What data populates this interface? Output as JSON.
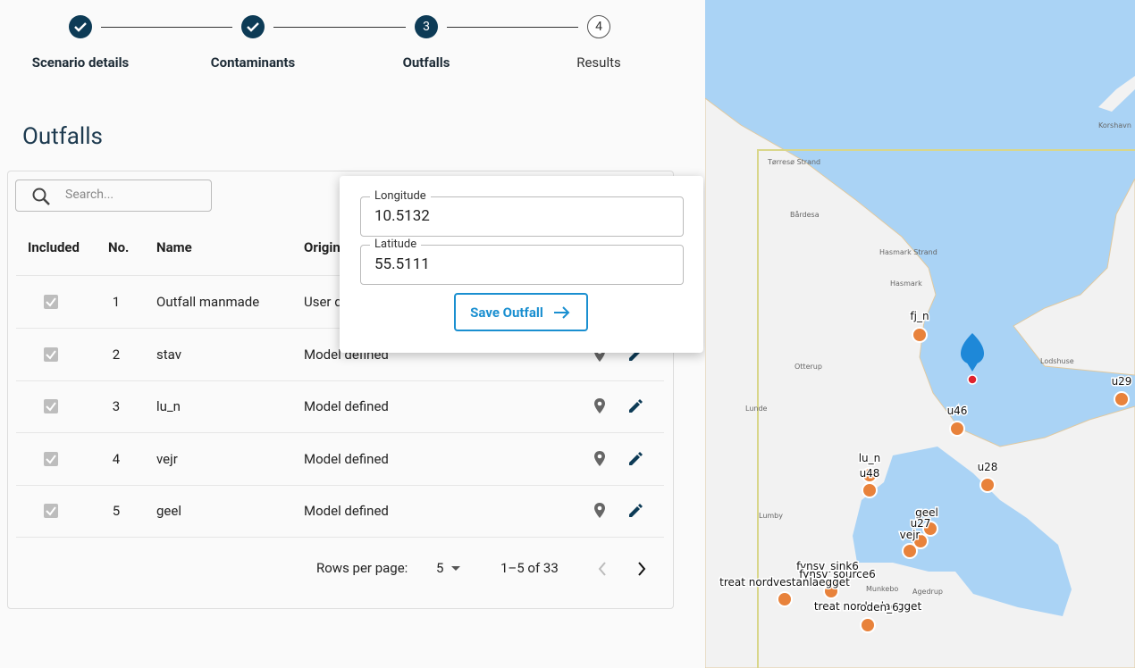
{
  "steps": [
    {
      "label": "Scenario details",
      "done": true
    },
    {
      "label": "Contaminants",
      "done": true
    },
    {
      "label": "Outfalls",
      "number": "3",
      "active": true
    },
    {
      "label": "Results",
      "number": "4"
    }
  ],
  "heading": "Outfalls",
  "search_placeholder": "Search...",
  "table": {
    "headers": [
      "Included",
      "No.",
      "Name",
      "Origin"
    ],
    "rows": [
      [
        1,
        "Outfall manmade",
        "User defined"
      ],
      [
        2,
        "stav",
        "Model defined"
      ],
      [
        3,
        "lu_n",
        "Model defined"
      ],
      [
        4,
        "vejr",
        "Model defined"
      ],
      [
        5,
        "geel",
        "Model defined"
      ]
    ]
  },
  "pagination": {
    "rows_per_page_label": "Rows per page:",
    "rows_per_page": "5",
    "range": "1–5 of 33"
  },
  "popup": {
    "longitude_label": "Longitude",
    "longitude": "10.5132",
    "latitude_label": "Latitude",
    "latitude": "55.5111",
    "button": "Save Outfall"
  },
  "map": {
    "markers": [
      "fj_n",
      "u29",
      "u46",
      "lu_n",
      "u48",
      "u28",
      "geel",
      "u27",
      "vejr",
      "fynsv_sink6",
      "fynsv_source6",
      "treat nordvestanlaegget",
      "treat nordenlaegget",
      "oden_6"
    ],
    "places": [
      "Tørresø Strand",
      "Bårdesa",
      "Hasmark Strand",
      "Hasmark",
      "Otterup",
      "Lunde",
      "Lumby",
      "Munkebo",
      "Agedrup",
      "Korshavn",
      "Lodshuse"
    ]
  }
}
